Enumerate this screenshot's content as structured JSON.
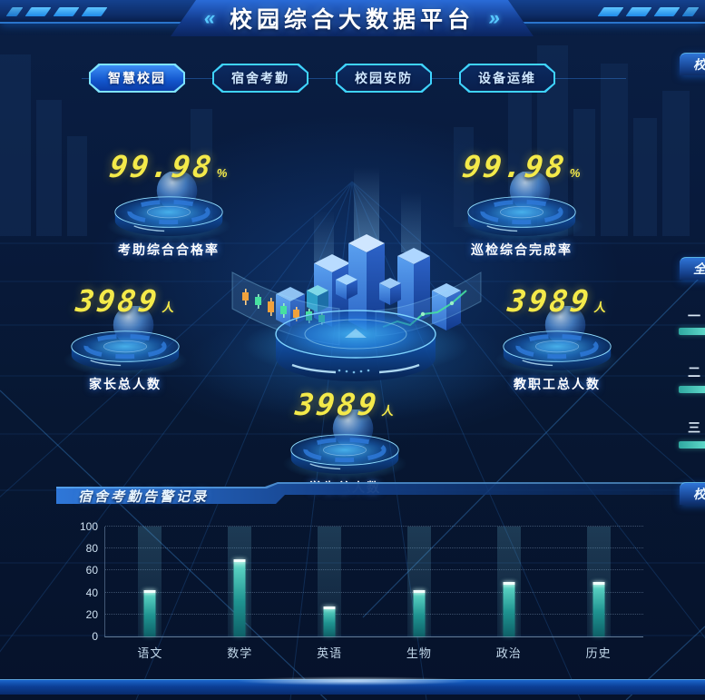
{
  "header": {
    "title": "校园综合大数据平台",
    "left_chevron": "«",
    "right_chevron": "»"
  },
  "tabs": [
    {
      "label": "智慧校园",
      "active": true
    },
    {
      "label": "宿舍考勤",
      "active": false
    },
    {
      "label": "校园安防",
      "active": false
    },
    {
      "label": "设备运维",
      "active": false
    }
  ],
  "kpis": {
    "attendance_rate": {
      "value": "99.98",
      "unit": "%",
      "label": "考助综合合格率"
    },
    "patrol_rate": {
      "value": "99.98",
      "unit": "%",
      "label": "巡检综合完成率"
    },
    "parents_total": {
      "value": "3989",
      "unit": "人",
      "label": "家长总人数"
    },
    "staff_total": {
      "value": "3989",
      "unit": "人",
      "label": "教职工总人数"
    },
    "students_total": {
      "value": "3989",
      "unit": "人",
      "label": "学生总人数"
    }
  },
  "alarm_panel": {
    "title": "宿舍考勤告警记录"
  },
  "chart_data": {
    "type": "bar",
    "title": "宿舍考勤告警记录",
    "categories": [
      "语文",
      "数学",
      "英语",
      "生物",
      "政治",
      "历史"
    ],
    "values": [
      42,
      70,
      27,
      42,
      50,
      50
    ],
    "xlabel": "",
    "ylabel": "",
    "ylim": [
      0,
      100
    ],
    "yticks": [
      0,
      20,
      40,
      60,
      80,
      100
    ],
    "grid": "horizontal-dotted",
    "legend": "none",
    "bar_color": "#57cfc0",
    "band_color": "rgba(120,210,235,0.15)"
  },
  "right_edge_panels": {
    "top_title_fragment": "校",
    "middle_title_fragment": "全",
    "rank_rows": [
      {
        "label_fragment": "一"
      },
      {
        "label_fragment": "二"
      },
      {
        "label_fragment": "三"
      }
    ],
    "bottom_title_fragment": "校"
  },
  "colors": {
    "background": "#071732",
    "accent_cyan": "#3fd4ff",
    "accent_blue": "#1f6fe0",
    "kpi_number_yellow": "#f4ea4a",
    "bar_teal": "#57cfc0",
    "panel_header_blue": "#2f74d8"
  }
}
